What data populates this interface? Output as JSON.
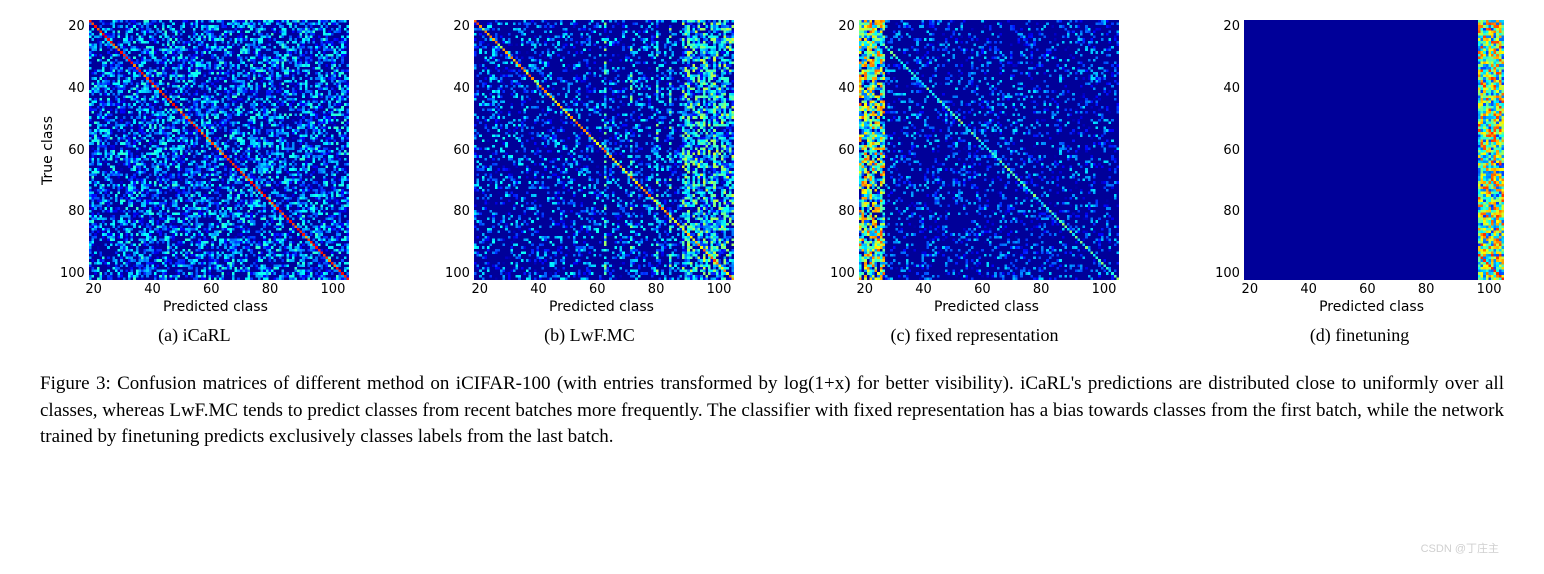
{
  "figure": {
    "grid_size": 100,
    "yticks": [
      "20",
      "40",
      "60",
      "80",
      "100"
    ],
    "xticks": [
      "20",
      "40",
      "60",
      "80",
      "100"
    ],
    "ylabel": "True class",
    "xlabel": "Predicted class",
    "colormap": {
      "name": "jet",
      "stops": [
        {
          "v": 0.0,
          "color": "#00007f"
        },
        {
          "v": 0.1,
          "color": "#0000ff"
        },
        {
          "v": 0.25,
          "color": "#007fff"
        },
        {
          "v": 0.4,
          "color": "#00ffff"
        },
        {
          "v": 0.55,
          "color": "#7fff7f"
        },
        {
          "v": 0.7,
          "color": "#ffff00"
        },
        {
          "v": 0.85,
          "color": "#ff7f00"
        },
        {
          "v": 1.0,
          "color": "#ff0000"
        }
      ],
      "background_value": 0.02
    },
    "subplots": [
      {
        "id": "icarl",
        "caption": "(a) iCaRL",
        "show_ylabel": true,
        "pattern": {
          "type": "diagonal_strong_uniform_noise",
          "diagonal_strength": 0.95,
          "noise_density": 0.55,
          "noise_max": 0.45
        }
      },
      {
        "id": "lwfmc",
        "caption": "(b) LwF.MC",
        "show_ylabel": false,
        "pattern": {
          "type": "diagonal_recent_bias",
          "diagonal_strength": 0.85,
          "noise_density": 0.3,
          "noise_max": 0.4,
          "recent_cols_start": 80,
          "recent_strength": 0.65,
          "vertical_bands": [
            50,
            60,
            70,
            75,
            82,
            88,
            92,
            96
          ]
        }
      },
      {
        "id": "fixedrep",
        "caption": "(c) fixed representation",
        "show_ylabel": false,
        "pattern": {
          "type": "first_batch_bias",
          "diagonal_strength": 0.55,
          "noise_density": 0.25,
          "noise_max": 0.35,
          "first_cols_end": 10,
          "first_strength": 0.7
        }
      },
      {
        "id": "finetune",
        "caption": "(d) finetuning",
        "show_ylabel": false,
        "pattern": {
          "type": "last_batch_only",
          "last_cols_start": 90,
          "last_strength": 0.8,
          "diag_in_last": 0.95
        }
      }
    ]
  },
  "caption_text": "Figure 3: Confusion matrices of different method on iCIFAR-100 (with entries transformed by log(1+x) for better visibility). iCaRL's predictions are distributed close to uniformly over all classes, whereas LwF.MC tends to predict classes from recent batches more frequently. The classifier with fixed representation has a bias towards classes from the first batch, while the network trained by finetuning predicts exclusively classes labels from the last batch.",
  "watermark": "CSDN @丁庄主"
}
